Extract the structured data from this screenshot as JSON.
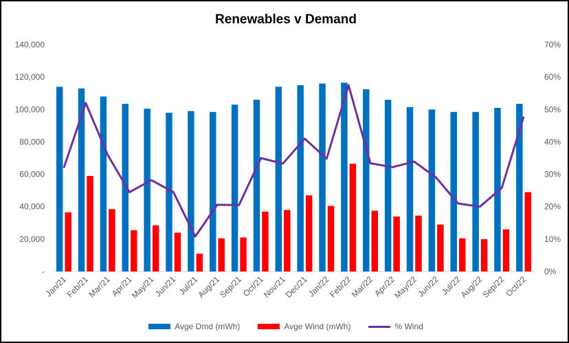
{
  "chart_data": {
    "type": "bar+line",
    "title": "Renewables v Demand",
    "categories": [
      "Jan/21",
      "Feb/21",
      "Mar/21",
      "Apr/21",
      "May/21",
      "Jun/21",
      "Jul/21",
      "Aug/21",
      "Sep/21",
      "Oct/21",
      "Nov/21",
      "Dec/21",
      "Jan/22",
      "Feb/22",
      "Mar/22",
      "Apr/22",
      "May/22",
      "Jun/22",
      "Jul/22",
      "Aug/22",
      "Sep/22",
      "Oct/22"
    ],
    "series": [
      {
        "name": "Avge Dmd (mWh)",
        "type": "bar",
        "axis": "left",
        "color": "#0070C0",
        "values": [
          114000,
          113000,
          108000,
          103500,
          100500,
          98000,
          99000,
          98500,
          103000,
          106000,
          114000,
          115000,
          116000,
          116500,
          112500,
          106000,
          101500,
          100000,
          98500,
          98500,
          101000,
          103500
        ]
      },
      {
        "name": "Avge Wind (mWh)",
        "type": "bar",
        "axis": "left",
        "color": "#FF0000",
        "values": [
          36500,
          59000,
          38500,
          25500,
          28500,
          24000,
          11000,
          20500,
          21000,
          37000,
          38000,
          47000,
          40500,
          66500,
          37500,
          34000,
          34500,
          29000,
          20500,
          20000,
          26000,
          49000
        ]
      },
      {
        "name": "% Wind",
        "type": "line",
        "axis": "right",
        "color": "#7030A0",
        "values": [
          0.32,
          0.52,
          0.36,
          0.245,
          0.282,
          0.245,
          0.108,
          0.206,
          0.205,
          0.35,
          0.333,
          0.41,
          0.348,
          0.575,
          0.334,
          0.322,
          0.339,
          0.29,
          0.21,
          0.2,
          0.258,
          0.478
        ]
      }
    ],
    "y_left": {
      "min": 0,
      "max": 140000,
      "ticks": [
        "-",
        "20,000",
        "40,000",
        "60,000",
        "80,000",
        "100,000",
        "120,000",
        "140,000"
      ]
    },
    "y_right": {
      "min": 0,
      "max": 0.7,
      "ticks": [
        "0%",
        "10%",
        "20%",
        "30%",
        "40%",
        "50%",
        "60%",
        "70%"
      ]
    },
    "grid": false,
    "legend_position": "bottom"
  }
}
